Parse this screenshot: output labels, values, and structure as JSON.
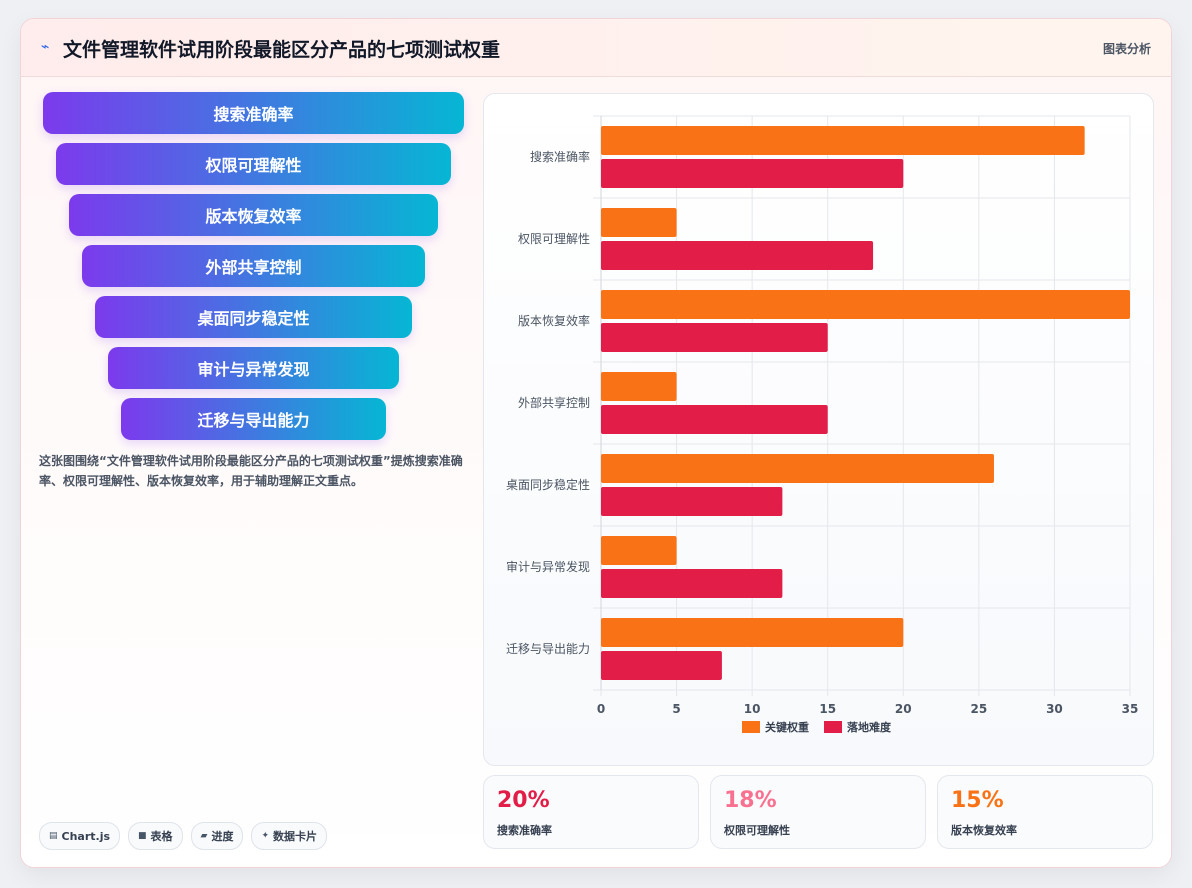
{
  "header": {
    "title": "文件管理软件试用阶段最能区分产品的七项测试权重",
    "tag": "图表分析",
    "icon": "lightning-icon"
  },
  "funnel": [
    "搜索准确率",
    "权限可理解性",
    "版本恢复效率",
    "外部共享控制",
    "桌面同步稳定性",
    "审计与异常发现",
    "迁移与导出能力"
  ],
  "description": "这张图围绕“文件管理软件试用阶段最能区分产品的七项测试权重”提炼搜索准确率、权限可理解性、版本恢复效率，用于辅助理解正文重点。",
  "chips": [
    {
      "icon": "chart-icon",
      "label": "Chart.js"
    },
    {
      "icon": "table-icon",
      "label": "表格"
    },
    {
      "icon": "progress-icon",
      "label": "进度"
    },
    {
      "icon": "sparkle-icon",
      "label": "数据卡片"
    }
  ],
  "stats": [
    {
      "value": "20%",
      "label": "搜索准确率",
      "color": "#e11d48"
    },
    {
      "value": "18%",
      "label": "权限可理解性",
      "color": "#f87190"
    },
    {
      "value": "15%",
      "label": "版本恢复效率",
      "color": "#f97316"
    }
  ],
  "chart_data": {
    "type": "bar",
    "orientation": "horizontal",
    "categories": [
      "搜索准确率",
      "权限可理解性",
      "版本恢复效率",
      "外部共享控制",
      "桌面同步稳定性",
      "审计与异常发现",
      "迁移与导出能力"
    ],
    "series": [
      {
        "name": "关键权重",
        "color": "#f97316",
        "values": [
          32,
          5,
          35,
          5,
          26,
          5,
          20
        ]
      },
      {
        "name": "落地难度",
        "color": "#e11d48",
        "values": [
          20,
          18,
          15,
          15,
          12,
          12,
          8
        ]
      }
    ],
    "xlim": [
      0,
      35
    ],
    "xticks": [
      0,
      5,
      10,
      15,
      20,
      25,
      30,
      35
    ],
    "grid": true,
    "legend": "bottom"
  }
}
